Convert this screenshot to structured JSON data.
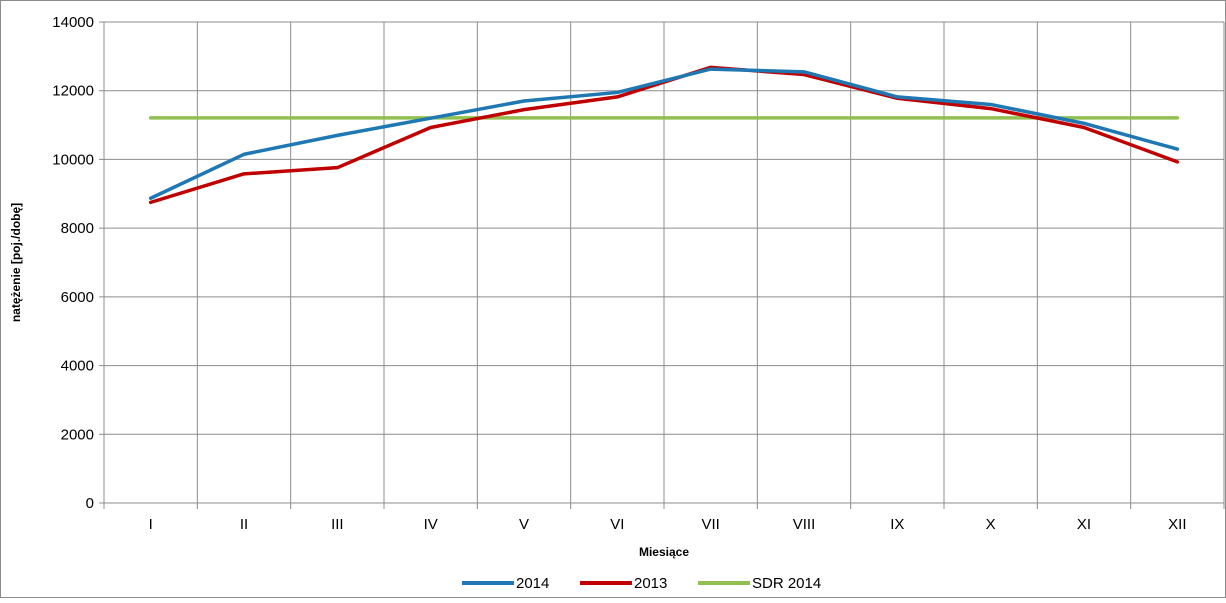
{
  "chart_data": {
    "type": "line",
    "title": "",
    "xlabel": "Miesiące",
    "ylabel": "natężenie [poj./dobę]",
    "categories": [
      "I",
      "II",
      "III",
      "IV",
      "V",
      "VI",
      "VII",
      "VIII",
      "IX",
      "X",
      "XI",
      "XII"
    ],
    "ylim": [
      0,
      14000
    ],
    "yticks": [
      0,
      2000,
      4000,
      6000,
      8000,
      10000,
      12000,
      14000
    ],
    "grid": true,
    "legend_position": "bottom",
    "series": [
      {
        "name": "2014",
        "color": "#1f77b4",
        "values": [
          8870,
          10150,
          10700,
          11200,
          11700,
          11950,
          12630,
          12550,
          11820,
          11600,
          11050,
          10300
        ]
      },
      {
        "name": "2013",
        "color": "#c00000",
        "values": [
          8750,
          9580,
          9760,
          10930,
          11450,
          11820,
          12680,
          12470,
          11780,
          11480,
          10930,
          9930
        ]
      },
      {
        "name": "SDR 2014",
        "color": "#92c050",
        "values": [
          11210,
          11210,
          11210,
          11210,
          11210,
          11210,
          11210,
          11210,
          11210,
          11210,
          11210,
          11210
        ]
      }
    ]
  }
}
